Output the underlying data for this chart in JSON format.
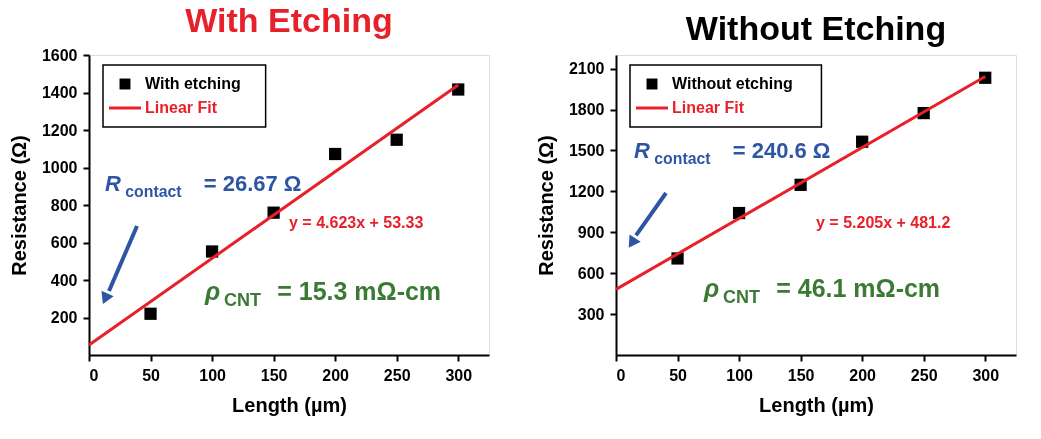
{
  "chart_data": [
    {
      "type": "scatter",
      "title": "With Etching",
      "xlabel": "Length (µm)",
      "ylabel": "Resistance (Ω)",
      "xlim": [
        0,
        325
      ],
      "xticks": [
        0,
        50,
        100,
        150,
        200,
        250,
        300
      ],
      "ylim": [
        0,
        1600
      ],
      "yticks": [
        200,
        400,
        600,
        800,
        1000,
        1200,
        1400,
        1600
      ],
      "grid": false,
      "legend": "top left",
      "series": [
        {
          "name": "With etching",
          "marker": "square",
          "color": "#000000",
          "x": [
            50,
            100,
            150,
            200,
            250,
            300
          ],
          "values": [
            220,
            552,
            759,
            1072,
            1148,
            1416
          ]
        },
        {
          "name": "Linear Fit",
          "type": "line",
          "color": "#e8202a",
          "x": [
            0,
            300
          ],
          "values": [
            53.33,
            1440.2
          ]
        }
      ],
      "annotations": [
        "R$_{contact}$ = 26.67 Ω",
        "y = 4.623x + 53.33",
        "ρ$_{CNT}$ = 15.3 mΩ-cm"
      ]
    },
    {
      "type": "scatter",
      "title": "Without Etching",
      "xlabel": "Length (µm)",
      "ylabel": "Resistance (Ω)",
      "xlim": [
        0,
        325
      ],
      "xticks": [
        0,
        50,
        100,
        150,
        200,
        250,
        300
      ],
      "ylim": [
        0,
        2200
      ],
      "yticks": [
        300,
        600,
        900,
        1200,
        1500,
        1800,
        2100
      ],
      "grid": false,
      "legend": "top left",
      "series": [
        {
          "name": "Without etching",
          "marker": "square",
          "color": "#000000",
          "x": [
            50,
            100,
            150,
            200,
            250,
            300
          ],
          "values": [
            708,
            1041,
            1248,
            1564,
            1774,
            2033
          ]
        },
        {
          "name": "Linear Fit",
          "type": "line",
          "color": "#e8202a",
          "x": [
            0,
            300
          ],
          "values": [
            481.2,
            2042.7
          ]
        }
      ],
      "annotations": [
        "R$_{contact}$ = 240.6 Ω",
        "y = 5.205x + 481.2",
        "ρ$_{CNT}$ = 46.1 mΩ-cm"
      ]
    }
  ]
}
